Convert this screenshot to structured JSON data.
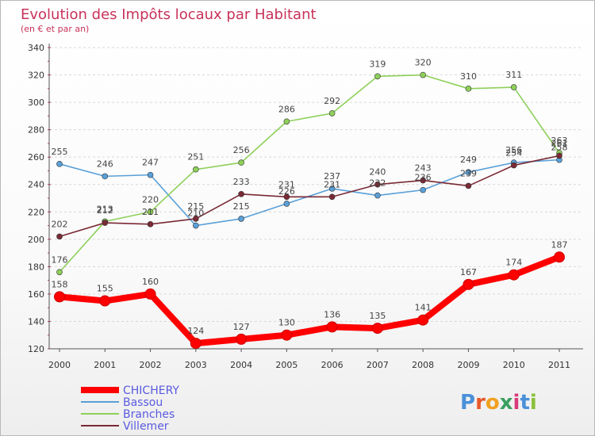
{
  "chart_data": {
    "type": "line",
    "title": "Evolution des Impôts locaux par Habitant",
    "subtitle": "(en € et par an)",
    "xlabel": "",
    "ylabel": "",
    "x": [
      "2000",
      "2001",
      "2002",
      "2003",
      "2004",
      "2005",
      "2006",
      "2007",
      "2008",
      "2009",
      "2010",
      "2011"
    ],
    "ylim": [
      120,
      340
    ],
    "yticks": [
      120,
      140,
      160,
      180,
      200,
      220,
      240,
      260,
      280,
      300,
      320,
      340
    ],
    "grid": true,
    "legend_position": "bottom-left",
    "series": [
      {
        "name": "CHICHERY",
        "color": "#ff0000",
        "values": [
          158,
          155,
          160,
          124,
          127,
          130,
          136,
          135,
          141,
          167,
          174,
          187
        ]
      },
      {
        "name": "Bassou",
        "color": "#5aa0d8",
        "values": [
          255,
          246,
          247,
          210,
          215,
          226,
          237,
          232,
          236,
          249,
          256,
          258
        ]
      },
      {
        "name": "Branches",
        "color": "#8ed05a",
        "values": [
          176,
          213,
          220,
          251,
          256,
          286,
          292,
          319,
          320,
          310,
          311,
          263
        ]
      },
      {
        "name": "Villemer",
        "color": "#7a2a35",
        "values": [
          202,
          212,
          211,
          215,
          233,
          231,
          231,
          240,
          243,
          239,
          254,
          261
        ]
      }
    ]
  },
  "logo": {
    "text": "Proxiti",
    "letter_colors": [
      "#4a90d9",
      "#e8582a",
      "#f0a020",
      "#3aa060",
      "#d83a7a",
      "#4a90d9",
      "#8ac03a"
    ]
  }
}
